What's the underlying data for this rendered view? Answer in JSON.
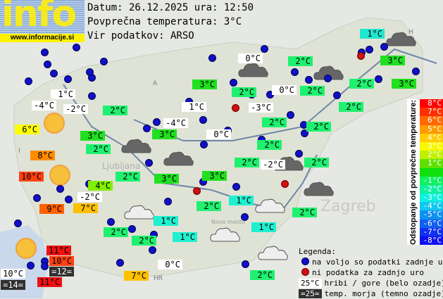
{
  "logo": {
    "text": "info",
    "url": "www.informacije.si"
  },
  "header": {
    "date_line": "Datum: 26.12.2025 ura: 12:50",
    "avg_line": "Povprečna temperatura: 3°C",
    "source_line": "Vir podatkov: ARSO"
  },
  "map_labels": [
    "Zagreb",
    "Ljubljana",
    "Novo mesto",
    "HR",
    "I",
    "A",
    "H"
  ],
  "stations": [
    {
      "t": "1°C",
      "c": "#20e8d0"
    },
    {
      "t": "0°C",
      "c": "#ffffff"
    },
    {
      "t": "2°C",
      "c": "#20f070"
    },
    {
      "t": "3°C",
      "c": "#20e020"
    },
    {
      "t": "3°C",
      "c": "#20e020"
    },
    {
      "t": "2°C",
      "c": "#20f070"
    },
    {
      "t": "0°C",
      "c": "#ffffff"
    },
    {
      "t": "2°C",
      "c": "#20f070"
    },
    {
      "t": "2°C",
      "c": "#20f070"
    },
    {
      "t": "3°C",
      "c": "#20e020"
    },
    {
      "t": "1°C",
      "c": "#ffffff"
    },
    {
      "t": "-3°C",
      "c": "#ffffff"
    },
    {
      "t": "2°C",
      "c": "#20f070"
    },
    {
      "t": "2°C",
      "c": "#20f070"
    },
    {
      "t": "2°C",
      "c": "#20f070"
    },
    {
      "t": "0°C",
      "c": "#ffffff"
    },
    {
      "t": "2°C",
      "c": "#20f070"
    },
    {
      "t": "1°C",
      "c": "#ffffff"
    },
    {
      "t": "-4°C",
      "c": "#ffffff"
    },
    {
      "t": "-2°C",
      "c": "#ffffff"
    },
    {
      "t": "2°C",
      "c": "#20f070"
    },
    {
      "t": "6°C",
      "c": "#ffff00"
    },
    {
      "t": "3°C",
      "c": "#20e020"
    },
    {
      "t": "-4°C",
      "c": "#ffffff"
    },
    {
      "t": "3°C",
      "c": "#20e020"
    },
    {
      "t": "2°C",
      "c": "#20f070"
    },
    {
      "t": "8°C",
      "c": "#ff8c00"
    },
    {
      "t": "10°C",
      "c": "#ff4010"
    },
    {
      "t": "2°C",
      "c": "#20f070"
    },
    {
      "t": "3°C",
      "c": "#20e020"
    },
    {
      "t": "3°C",
      "c": "#20e020"
    },
    {
      "t": "4°C",
      "c": "#80f000"
    },
    {
      "t": "-2°C",
      "c": "#ffffff"
    },
    {
      "t": "9°C",
      "c": "#ff6000"
    },
    {
      "t": "7°C",
      "c": "#ffc000"
    },
    {
      "t": "2°C",
      "c": "#20f070"
    },
    {
      "t": "1°C",
      "c": "#20f0d0"
    },
    {
      "t": "2°C",
      "c": "#20f070"
    },
    {
      "t": "2°C",
      "c": "#20f070"
    },
    {
      "t": "1°C",
      "c": "#20f0d0"
    },
    {
      "t": "1°C",
      "c": "#20f0d0"
    },
    {
      "t": "1°C",
      "c": "#20f0d0"
    },
    {
      "t": "2°C",
      "c": "#20f070"
    },
    {
      "t": "2°C",
      "c": "#20f070"
    },
    {
      "t": "-2°C",
      "c": "#ffffff"
    },
    {
      "t": "2°C",
      "c": "#20f070"
    },
    {
      "t": "7°C",
      "c": "#ffc000"
    },
    {
      "t": "0°C",
      "c": "#ffffff"
    },
    {
      "t": "2°C",
      "c": "#20f070"
    },
    {
      "t": "11°C",
      "c": "#f01010"
    },
    {
      "t": "10°C",
      "c": "#ff4010"
    },
    {
      "t": "=12=",
      "c": "#303030"
    },
    {
      "t": "10°C",
      "c": "#ffffff"
    },
    {
      "t": "=14=",
      "c": "#303030"
    },
    {
      "t": "11°C",
      "c": "#f01010"
    }
  ],
  "colorbar": {
    "title": "Odstopanje od povprečne temperature:",
    "steps": [
      {
        "t": "8°C",
        "c": "#ff0000"
      },
      {
        "t": "7°C",
        "c": "#ff3000"
      },
      {
        "t": "6°C",
        "c": "#ff6a00"
      },
      {
        "t": "5°C",
        "c": "#ff9a00"
      },
      {
        "t": "4°C",
        "c": "#ffcc00"
      },
      {
        "t": "3°C",
        "c": "#f8f800"
      },
      {
        "t": "2°C",
        "c": "#c0f000"
      },
      {
        "t": "1°C",
        "c": "#60e000"
      },
      {
        "t": "",
        "c": "#10e010"
      },
      {
        "t": "-1°C",
        "c": "#10f060"
      },
      {
        "t": "-2°C",
        "c": "#10f0a0"
      },
      {
        "t": "-3°C",
        "c": "#10f0e0"
      },
      {
        "t": "-4°C",
        "c": "#10c8f0"
      },
      {
        "t": "-5°C",
        "c": "#1090f0"
      },
      {
        "t": "-6°C",
        "c": "#1060f0"
      },
      {
        "t": "-7°C",
        "c": "#1030f0"
      },
      {
        "t": "-8°C",
        "c": "#1010f0"
      }
    ]
  },
  "legend": {
    "title": "Legenda:",
    "blue": "na voljo so podatki zadnje ure",
    "red": "ni podatka za zadnjo uro",
    "hill_sample": "25°C",
    "hill": "hribi / gore (belo ozadje)",
    "sea_sample": "=25=",
    "sea": "temp. morja (temno ozadje)"
  }
}
